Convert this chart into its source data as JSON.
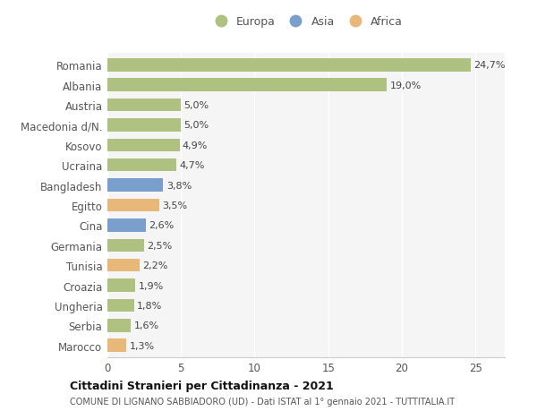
{
  "categories": [
    "Romania",
    "Albania",
    "Austria",
    "Macedonia d/N.",
    "Kosovo",
    "Ucraina",
    "Bangladesh",
    "Egitto",
    "Cina",
    "Germania",
    "Tunisia",
    "Croazia",
    "Ungheria",
    "Serbia",
    "Marocco"
  ],
  "values": [
    24.7,
    19.0,
    5.0,
    5.0,
    4.9,
    4.7,
    3.8,
    3.5,
    2.6,
    2.5,
    2.2,
    1.9,
    1.8,
    1.6,
    1.3
  ],
  "labels": [
    "24,7%",
    "19,0%",
    "5,0%",
    "5,0%",
    "4,9%",
    "4,7%",
    "3,8%",
    "3,5%",
    "2,6%",
    "2,5%",
    "2,2%",
    "1,9%",
    "1,8%",
    "1,6%",
    "1,3%"
  ],
  "continent": [
    "Europa",
    "Europa",
    "Europa",
    "Europa",
    "Europa",
    "Europa",
    "Asia",
    "Africa",
    "Asia",
    "Europa",
    "Africa",
    "Europa",
    "Europa",
    "Europa",
    "Africa"
  ],
  "colors": {
    "Europa": "#aec180",
    "Asia": "#7b9fcc",
    "Africa": "#e8b87a"
  },
  "legend": [
    "Europa",
    "Asia",
    "Africa"
  ],
  "legend_colors": [
    "#aec180",
    "#7b9fcc",
    "#e8b87a"
  ],
  "xlim": [
    0,
    27
  ],
  "xticks": [
    0,
    5,
    10,
    15,
    20,
    25
  ],
  "title1": "Cittadini Stranieri per Cittadinanza - 2021",
  "title2": "COMUNE DI LIGNANO SABBIADORO (UD) - Dati ISTAT al 1° gennaio 2021 - TUTTITALIA.IT",
  "bg_color": "#ffffff",
  "plot_bg_color": "#f5f5f5",
  "grid_color": "#ffffff",
  "bar_height": 0.65,
  "label_fontsize": 8.0,
  "ytick_fontsize": 8.5,
  "xtick_fontsize": 8.5
}
